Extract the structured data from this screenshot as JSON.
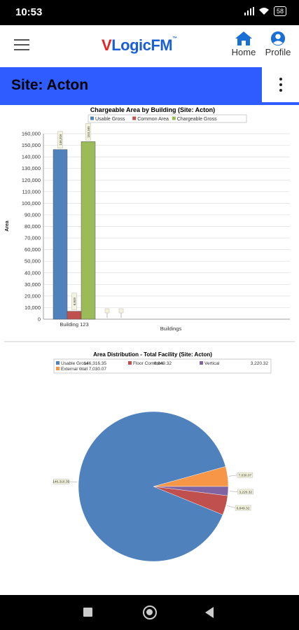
{
  "status_bar": {
    "time": "10:53",
    "battery": "58"
  },
  "header": {
    "logo_v": "V",
    "logo_rest": "LogicFM",
    "logo_tm": "™",
    "home_label": "Home",
    "profile_label": "Profile"
  },
  "site_bar": {
    "title": "Site: Acton"
  },
  "colors": {
    "blue": "#4f81bd",
    "red": "#c0504d",
    "green": "#9bbb59",
    "purple": "#8064a2",
    "orange": "#f79646",
    "site_bar": "#2f5cff"
  },
  "chart_data": [
    {
      "type": "bar",
      "title": "Chargeable Area by Building (Site: Acton)",
      "xlabel": "Buildings",
      "ylabel": "Area",
      "categories": [
        "Building 123"
      ],
      "ylim": [
        0,
        160000
      ],
      "yticks": [
        "0",
        "10,000",
        "20,000",
        "30,000",
        "40,000",
        "50,000",
        "60,000",
        "70,000",
        "80,000",
        "90,000",
        "100,000",
        "110,000",
        "120,000",
        "130,000",
        "140,000",
        "150,000",
        "160,000"
      ],
      "series": [
        {
          "name": "Usable Gross",
          "values": [
            146316
          ],
          "color": "#4f81bd"
        },
        {
          "name": "Common Area",
          "values": [
            6849
          ],
          "color": "#c0504d"
        },
        {
          "name": "Chargeable Gross",
          "values": [
            153165
          ],
          "color": "#9bbb59"
        }
      ],
      "grid": true,
      "legend": "top"
    },
    {
      "type": "pie",
      "title": "Area Distribution - Total Facility (Site: Acton)",
      "legend": "top",
      "slices": [
        {
          "name": "Usable Gross",
          "value": 146316.35,
          "label": "146,316.35",
          "color": "#4f81bd"
        },
        {
          "name": "Floor Common",
          "value": 6849.32,
          "label": "6,849.32",
          "color": "#c0504d"
        },
        {
          "name": "Vertical",
          "value": 3220.32,
          "label": "3,220.32",
          "color": "#8064a2"
        },
        {
          "name": "External Wall",
          "value": 7030.07,
          "label": "7,030.07",
          "color": "#f79646"
        }
      ]
    }
  ]
}
